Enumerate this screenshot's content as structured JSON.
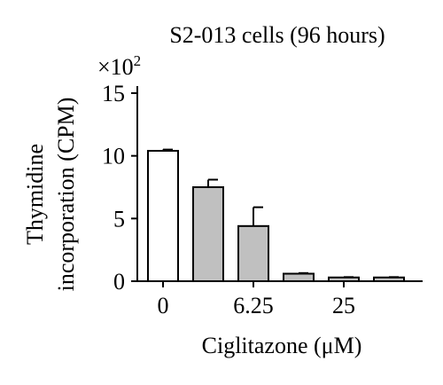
{
  "chart_data": {
    "type": "bar",
    "title": "S2-013 cells (96 hours)",
    "scale_label": "×10",
    "scale_exponent": "2",
    "ylabel_line1": "Thymidine",
    "ylabel_line2": "incorporation (CPM)",
    "xlabel": "Ciglitazone (μM)",
    "ylim": [
      0,
      15
    ],
    "yticks": [
      "0",
      "5",
      "10",
      "15"
    ],
    "xtick_labels": [
      "0",
      "6.25",
      "25"
    ],
    "xtick_positions": [
      0,
      2,
      4
    ],
    "bars": [
      {
        "value": 10.4,
        "error": 0.1,
        "fill": "#ffffff"
      },
      {
        "value": 7.5,
        "error": 0.6,
        "fill": "#c0c0c0"
      },
      {
        "value": 4.4,
        "error": 1.5,
        "fill": "#c0c0c0"
      },
      {
        "value": 0.6,
        "error": 0.05,
        "fill": "#c0c0c0"
      },
      {
        "value": 0.3,
        "error": 0.03,
        "fill": "#c0c0c0"
      },
      {
        "value": 0.3,
        "error": 0.03,
        "fill": "#c0c0c0"
      }
    ]
  }
}
